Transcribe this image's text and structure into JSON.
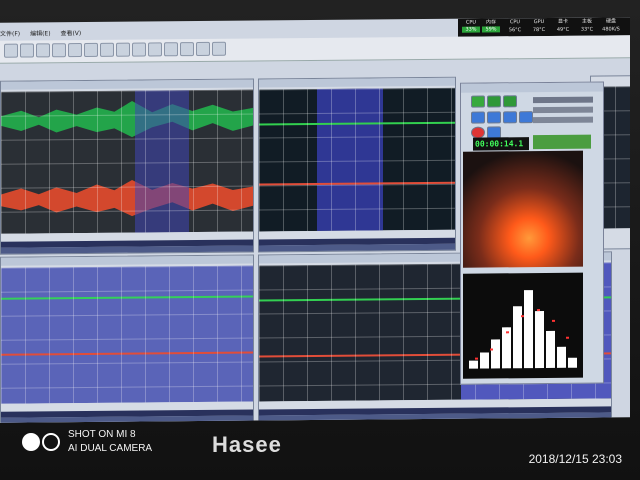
{
  "screen": {
    "menu": [
      "文件(F)",
      "编辑(E)",
      "查看(V)"
    ],
    "status": {
      "labels": [
        "CPU",
        "内存",
        "CPU",
        "GPU",
        "显卡",
        "主板",
        "硬盘"
      ],
      "values": [
        "33%",
        "59%",
        "56°C",
        "78°C",
        "49°C",
        "33°C",
        "480K/S"
      ]
    }
  },
  "floatwin": {
    "time": "00:00:14.1"
  },
  "chart_overlay": {
    "histogram_bars": [
      0.1,
      0.2,
      0.35,
      0.5,
      0.75,
      0.95,
      0.7,
      0.45,
      0.25,
      0.12
    ],
    "spectrogram": "orange-flame"
  },
  "watermark": {
    "line1": "SHOT ON MI 8",
    "line2": "AI DUAL CAMERA"
  },
  "brand": "Hasee",
  "timestamp": "2018/12/15  23:03"
}
